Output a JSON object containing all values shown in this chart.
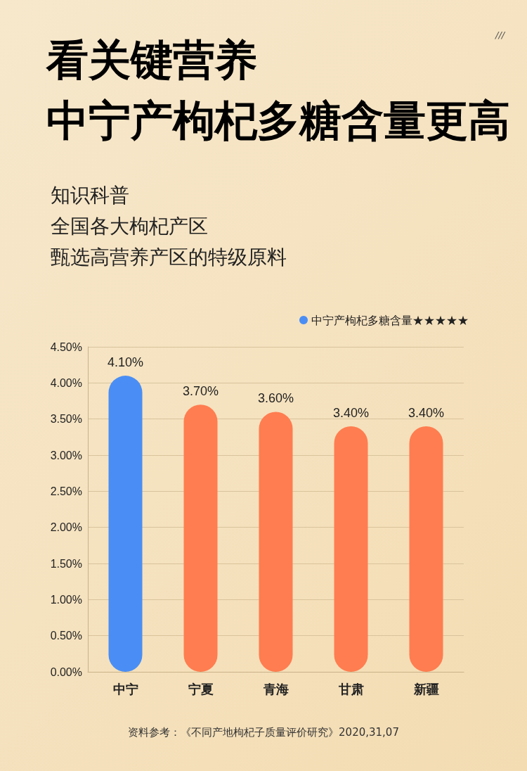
{
  "chart_data": {
    "type": "bar",
    "title": "看关键营养",
    "subtitle": "中宁产枸杞多糖含量更高",
    "categories": [
      "中宁",
      "宁夏",
      "青海",
      "甘肃",
      "新疆"
    ],
    "series": [
      {
        "name": "中宁产枸杞多糖含量★★★★★",
        "colors": [
          "#4a8ef5",
          "#ff7d50",
          "#ff7d50",
          "#ff7d50",
          "#ff7d50"
        ],
        "values": [
          4.1,
          3.7,
          3.6,
          3.4,
          3.4
        ],
        "value_labels": [
          "4.10%",
          "3.70%",
          "3.60%",
          "3.40%",
          "3.40%"
        ]
      }
    ],
    "ylim": [
      0,
      4.5
    ],
    "yticks": [
      {
        "value": 0,
        "label": "0.00%"
      },
      {
        "value": 0.5,
        "label": "0.50%"
      },
      {
        "value": 1,
        "label": "1.00%"
      },
      {
        "value": 1.5,
        "label": "1.50%"
      },
      {
        "value": 2,
        "label": "2.00%"
      },
      {
        "value": 2.5,
        "label": "2.50%"
      },
      {
        "value": 3,
        "label": "3.00%"
      },
      {
        "value": 3.5,
        "label": "3.50%"
      },
      {
        "value": 4,
        "label": "4.00%"
      },
      {
        "value": 4.5,
        "label": "4.50%"
      }
    ],
    "grid": "y",
    "legend": "top right",
    "annotations": [
      "知识科普",
      "全国各大枸杞产区",
      "甄选高营养产区的特级原料",
      "///",
      "资料参考：《不同产地枸杞子质量评价研究》2020,31,07"
    ]
  }
}
